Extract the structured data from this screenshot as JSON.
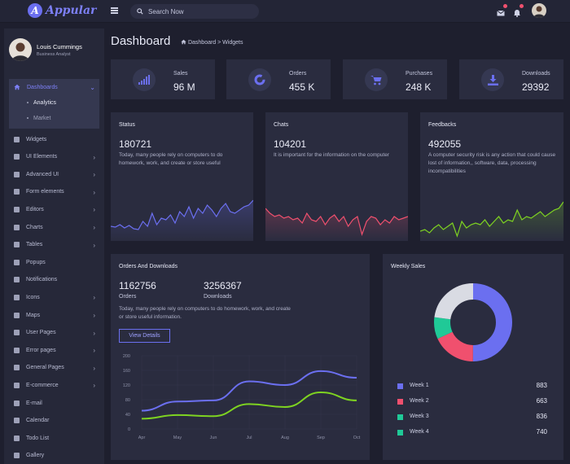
{
  "app": {
    "logo_letter": "A",
    "logo_text": "Appular"
  },
  "topbar": {
    "search_placeholder": "Search Now"
  },
  "user": {
    "name": "Louis Cummings",
    "role": "Business Analyst"
  },
  "sidebar": {
    "active": {
      "label": "Dashboards",
      "sub": [
        "Analytics",
        "Market"
      ]
    },
    "items": [
      {
        "label": "Widgets",
        "chev": false
      },
      {
        "label": "UI Elements",
        "chev": true
      },
      {
        "label": "Advanced UI",
        "chev": true
      },
      {
        "label": "Form elements",
        "chev": true
      },
      {
        "label": "Editors",
        "chev": true
      },
      {
        "label": "Charts",
        "chev": true
      },
      {
        "label": "Tables",
        "chev": true
      },
      {
        "label": "Popups",
        "chev": false
      },
      {
        "label": "Notifications",
        "chev": false
      },
      {
        "label": "Icons",
        "chev": true
      },
      {
        "label": "Maps",
        "chev": true
      },
      {
        "label": "User Pages",
        "chev": true
      },
      {
        "label": "Error pages",
        "chev": true
      },
      {
        "label": "General Pages",
        "chev": true
      },
      {
        "label": "E-commerce",
        "chev": true
      },
      {
        "label": "E-mail",
        "chev": false
      },
      {
        "label": "Calendar",
        "chev": false
      },
      {
        "label": "Todo List",
        "chev": false
      },
      {
        "label": "Gallery",
        "chev": false
      }
    ]
  },
  "page": {
    "title": "Dashboard",
    "breadcrumb": "Dashboard > Widgets"
  },
  "stats": [
    {
      "label": "Sales",
      "value": "96 M",
      "icon": "bar-chart-icon"
    },
    {
      "label": "Orders",
      "value": "455 K",
      "icon": "donut-icon"
    },
    {
      "label": "Purchases",
      "value": "248 K",
      "icon": "cart-icon"
    },
    {
      "label": "Downloads",
      "value": "29392",
      "icon": "download-icon"
    }
  ],
  "cards": [
    {
      "title": "Status",
      "value": "180721",
      "desc": "Today, many people rely on computers to do homework, work, and create or store useful",
      "color": "#6b6ff0"
    },
    {
      "title": "Chats",
      "value": "104201",
      "desc": "It is important for the information on the computer",
      "color": "#f0506e"
    },
    {
      "title": "Feedbacks",
      "value": "492055",
      "desc": "A computer security risk is any action that could cause lost of information,, software, data, processing incompatibilities",
      "color": "#7ed321"
    }
  ],
  "orders": {
    "title": "Orders And Downloads",
    "orders_value": "1162756",
    "orders_label": "Orders",
    "downloads_value": "3256367",
    "downloads_label": "Downloads",
    "desc": "Today, many people rely on computers to do homework, work, and create or store useful information.",
    "button": "View Details"
  },
  "chart_data": {
    "type": "line",
    "categories": [
      "Apr",
      "May",
      "Jun",
      "Jul",
      "Aug",
      "Sep",
      "Oct"
    ],
    "series": [
      {
        "values": [
          50,
          75,
          78,
          130,
          120,
          158,
          140
        ],
        "color": "#6b6ff0"
      },
      {
        "values": [
          28,
          38,
          35,
          68,
          60,
          100,
          78
        ],
        "color": "#7ed321"
      }
    ],
    "yticks": [
      0,
      40,
      80,
      120,
      160,
      200
    ],
    "ylim": [
      0,
      200
    ]
  },
  "weekly": {
    "title": "Weekly Sales",
    "chart_data": {
      "type": "pie",
      "labels": [
        "Week 1",
        "Week 2",
        "Week 3",
        "Week 4"
      ],
      "values": [
        883,
        663,
        836,
        740
      ],
      "legend_colors": [
        "#6b6ff0",
        "#f0506e",
        "#20c997",
        "#20c997"
      ],
      "slices": [
        {
          "value": 50,
          "color": "#6b6ff0"
        },
        {
          "value": 18,
          "color": "#f0506e"
        },
        {
          "value": 9,
          "color": "#20c997"
        },
        {
          "value": 23,
          "color": "#d9dbe3"
        }
      ]
    }
  }
}
